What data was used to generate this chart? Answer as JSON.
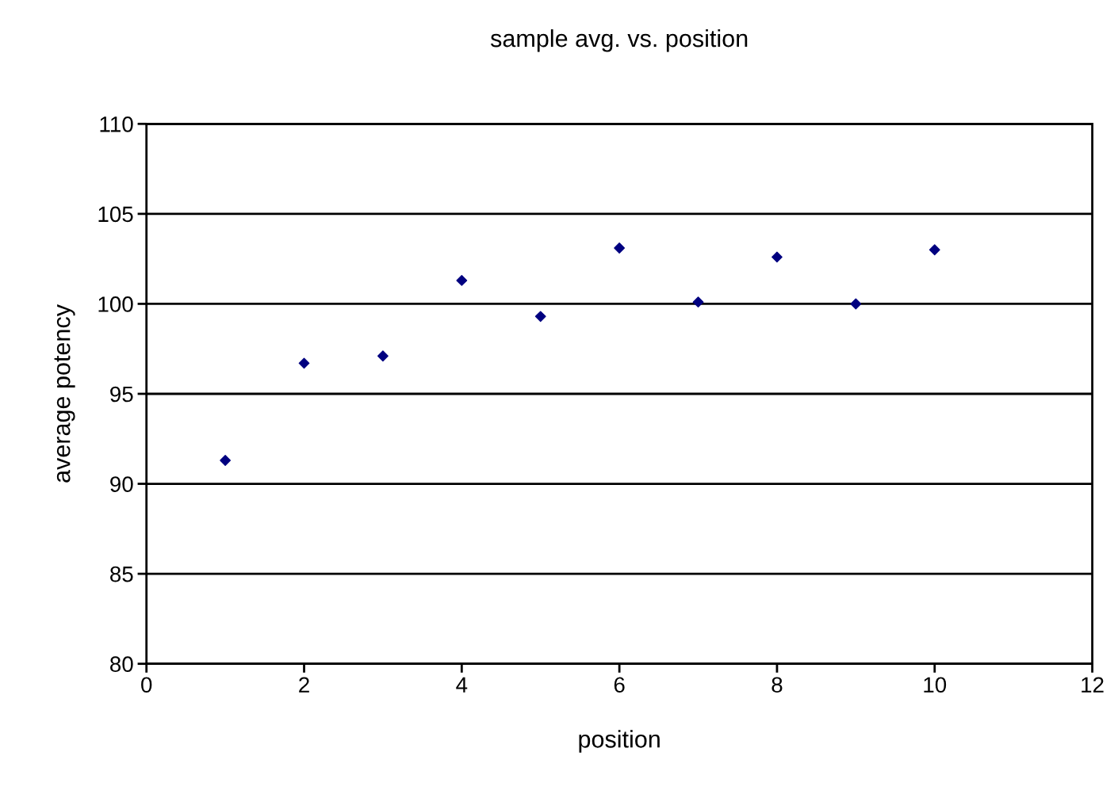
{
  "chart_data": {
    "type": "scatter",
    "title": "sample avg. vs. position",
    "xlabel": "position",
    "ylabel": "average potency",
    "x": [
      1,
      2,
      3,
      4,
      5,
      6,
      7,
      8,
      9,
      10
    ],
    "values": [
      91.3,
      96.7,
      97.1,
      101.3,
      99.3,
      103.1,
      100.1,
      102.6,
      100.0,
      103.0
    ],
    "color": "#000080",
    "marker": "diamond",
    "xlim": [
      0,
      12
    ],
    "xticks": [
      0,
      2,
      4,
      6,
      8,
      10,
      12
    ],
    "ylim": [
      80,
      110
    ],
    "yticks": [
      80,
      85,
      90,
      95,
      100,
      105,
      110
    ],
    "grid": "y",
    "legend": false
  }
}
